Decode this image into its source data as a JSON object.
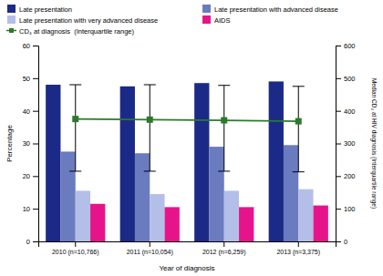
{
  "chart_data": {
    "type": "bar",
    "categories": [
      "2010 (n=10,766)",
      "2011 (n=10,054)",
      "2012 (n=6,259)",
      "2013 (n=3,375)"
    ],
    "xlabel": "Year of diagnosis",
    "ylabel": "Percentage",
    "y2label": "Median CD₄ at HIV diagnosis (Interquartile range)",
    "ylim": [
      0,
      60
    ],
    "yticks": [
      0,
      10,
      20,
      30,
      40,
      50,
      60
    ],
    "y2lim": [
      0,
      600
    ],
    "y2ticks": [
      0,
      100,
      200,
      300,
      400,
      500,
      600
    ],
    "grid": false,
    "legend": "top",
    "series": [
      {
        "name": "Late presentation",
        "color": "#1c2a87",
        "values": [
          48,
          47.5,
          48.5,
          49
        ]
      },
      {
        "name": "Late presentation with advanced disease",
        "color": "#6b7bbf",
        "values": [
          27.5,
          27,
          29,
          29.5
        ]
      },
      {
        "name": "Late presentation with very advanced disease",
        "color": "#b3bfe8",
        "values": [
          15.5,
          14.5,
          15.5,
          16
        ]
      },
      {
        "name": "AIDS",
        "color": "#e6148a",
        "values": [
          11.5,
          10.5,
          10.5,
          11
        ]
      },
      {
        "name": "CD₄ at diagnosis  (Interquartile range)",
        "color": "#2b7a2b",
        "type": "line",
        "axis": "y2",
        "marker": "square",
        "values": [
          375,
          373,
          371,
          368
        ],
        "upper": [
          480,
          480,
          478,
          475
        ],
        "lower": [
          215,
          215,
          215,
          213
        ]
      }
    ]
  }
}
